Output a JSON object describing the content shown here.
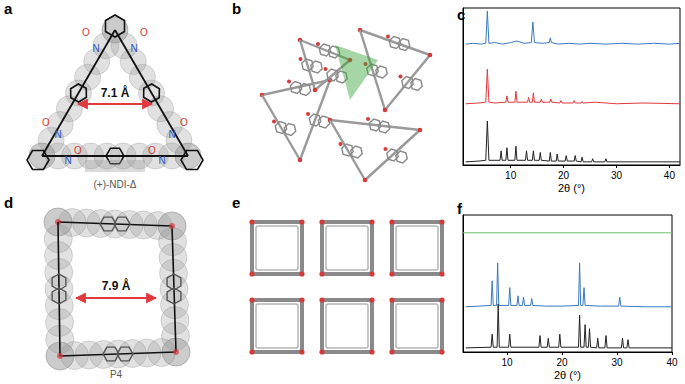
{
  "panels": [
    {
      "label": "a",
      "distance": "7.1 Å",
      "name": "(+)-NDI-Δ",
      "atom_labels": [
        "N",
        "N",
        "O",
        "O",
        "N",
        "N",
        "O",
        "O",
        "N",
        "N",
        "O",
        "O"
      ]
    },
    {
      "label": "b"
    },
    {
      "label": "d",
      "distance": "7.9 Å",
      "name": "P4"
    },
    {
      "label": "e"
    }
  ],
  "chart_data": [
    {
      "type": "line",
      "title": "c",
      "x_label": "2θ (°)",
      "xlim": [
        1,
        42
      ],
      "xticks": [
        10,
        20,
        30,
        40
      ],
      "ylim": [
        0,
        100
      ],
      "yticks": [],
      "tick_labels": "x",
      "grid": false,
      "series": [
        {
          "color": "#3b78c4",
          "x": [
            1.5,
            3,
            4.5,
            5.3,
            5.6,
            5.9,
            7,
            8.5,
            10,
            11.2,
            12.5,
            13.9,
            14.2,
            14.5,
            16,
            17.3,
            17.5,
            17.7,
            19,
            21,
            23,
            25,
            28,
            31,
            34,
            37,
            40,
            42
          ],
          "values": [
            77,
            77.5,
            77,
            77.5,
            98,
            77.5,
            78,
            77,
            78,
            79,
            77.5,
            78,
            91,
            78,
            77.5,
            78,
            81,
            78,
            77,
            77.5,
            77,
            77.5,
            77,
            77.5,
            77,
            77.5,
            77,
            77.5
          ]
        },
        {
          "color": "#e0393e",
          "x": [
            1.5,
            4,
            5.3,
            5.6,
            5.9,
            7,
            9.1,
            9.3,
            9.5,
            10.8,
            11,
            11.2,
            13.2,
            13.4,
            13.6,
            14.1,
            14.3,
            14.5,
            15.6,
            15.8,
            16,
            17.4,
            17.6,
            17.8,
            19.3,
            19.5,
            19.7,
            21.8,
            22,
            22.2,
            23.3,
            23.5,
            23.7,
            26,
            30,
            35,
            42
          ],
          "values": [
            39,
            39.5,
            40,
            61,
            40,
            39.5,
            40,
            44,
            40,
            40,
            47,
            40,
            40,
            43,
            40,
            40,
            46,
            40,
            40,
            42,
            40,
            40,
            42,
            40,
            39.5,
            41,
            39.5,
            39.5,
            41,
            39.5,
            39.5,
            40.5,
            39.5,
            40,
            39,
            39.5,
            39
          ]
        },
        {
          "color": "#222222",
          "x": [
            1.5,
            4,
            5.3,
            5.6,
            5.9,
            8,
            8.2,
            8.4,
            9.1,
            9.3,
            9.5,
            10.8,
            11,
            11.2,
            12.8,
            13,
            13.2,
            14.1,
            14.3,
            14.5,
            15.4,
            15.6,
            15.8,
            17.3,
            17.5,
            17.7,
            18.6,
            18.8,
            19,
            20.3,
            20.5,
            20.7,
            22,
            22.2,
            22.4,
            23.3,
            23.5,
            23.7,
            25.3,
            25.5,
            25.7,
            27.8,
            28,
            28.2,
            32,
            42
          ],
          "values": [
            2,
            2.5,
            3,
            28,
            3,
            3,
            9,
            3,
            3,
            11,
            3,
            3,
            12,
            3,
            3,
            9,
            3,
            3,
            9,
            3,
            3,
            8,
            3,
            2.5,
            8,
            2.5,
            2.5,
            7,
            2.5,
            2.5,
            6,
            2.5,
            2.5,
            6,
            2.5,
            2,
            5,
            2,
            2,
            4,
            2,
            2,
            4,
            2,
            2,
            2
          ]
        }
      ]
    },
    {
      "type": "line",
      "title": "f",
      "x_label": "2θ (°)",
      "xlim": [
        2,
        40
      ],
      "xticks": [
        10,
        20,
        30,
        40
      ],
      "ylim": [
        0,
        100
      ],
      "yticks": [],
      "tick_labels": "x",
      "grid": false,
      "series": [
        {
          "color": "#6cc16a",
          "x": [
            2,
            40
          ],
          "values": [
            87,
            87
          ]
        },
        {
          "color": "#3b78c4",
          "x": [
            2.5,
            5,
            7.1,
            7.3,
            7.5,
            8.1,
            8.3,
            8.5,
            10.3,
            10.5,
            10.7,
            11.8,
            12,
            12.2,
            12.8,
            13,
            13.2,
            14.3,
            14.5,
            14.7,
            17,
            20,
            23,
            23.2,
            23.4,
            23.8,
            24,
            24.2,
            27,
            30.3,
            30.5,
            30.7,
            35,
            40
          ],
          "values": [
            33,
            33.5,
            34,
            52,
            34,
            34,
            65,
            34,
            34,
            47,
            34,
            34,
            41,
            34,
            34,
            40,
            34,
            34,
            39,
            34,
            33.5,
            33.5,
            34,
            65,
            34,
            34,
            47,
            34,
            33.5,
            33.5,
            40,
            33.5,
            33,
            33
          ]
        },
        {
          "color": "#222222",
          "x": [
            2.5,
            7.1,
            7.3,
            7.5,
            8.2,
            8.4,
            8.6,
            10.3,
            10.5,
            10.7,
            15.8,
            16,
            16.2,
            17.3,
            17.5,
            17.7,
            19.4,
            19.6,
            19.8,
            23,
            23.2,
            23.4,
            24,
            24.2,
            24.4,
            24.8,
            25,
            25.2,
            26.3,
            26.5,
            26.7,
            27.8,
            28,
            28.2,
            30.8,
            31,
            31.2,
            31.8,
            32,
            32.2,
            35,
            40
          ],
          "values": [
            3,
            3.5,
            13,
            3.5,
            3.5,
            35,
            3.5,
            3.5,
            13,
            3.5,
            3.5,
            12,
            3.5,
            3.5,
            10,
            3.5,
            3.5,
            13,
            3.5,
            3.5,
            27,
            3.5,
            3.5,
            20,
            3.5,
            3.5,
            17,
            3.5,
            3,
            10,
            3,
            3,
            12,
            3,
            3,
            10,
            3,
            3,
            9,
            3,
            3,
            3
          ]
        }
      ]
    }
  ]
}
